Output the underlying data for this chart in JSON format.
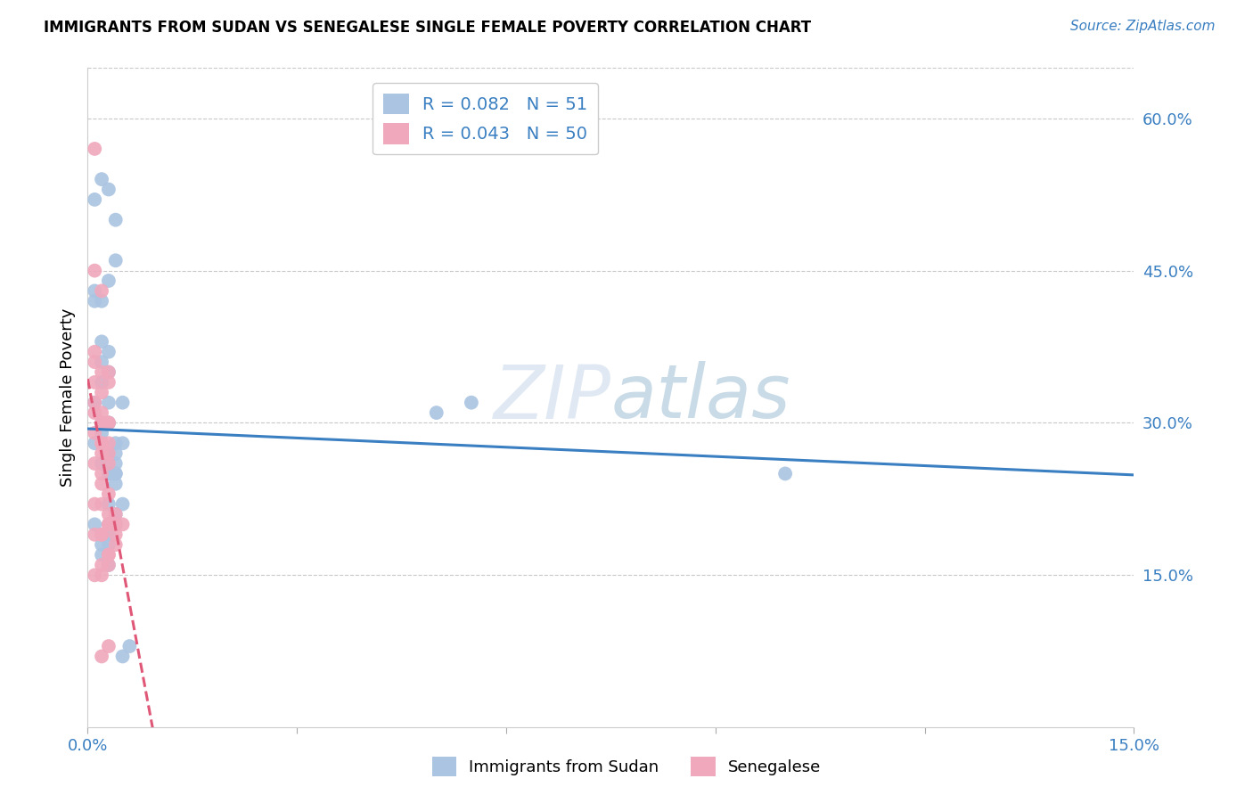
{
  "title": "IMMIGRANTS FROM SUDAN VS SENEGALESE SINGLE FEMALE POVERTY CORRELATION CHART",
  "source": "Source: ZipAtlas.com",
  "ylabel": "Single Female Poverty",
  "xlim": [
    0.0,
    0.15
  ],
  "ylim": [
    0.0,
    0.65
  ],
  "ytick_labels_right": [
    "60.0%",
    "45.0%",
    "30.0%",
    "15.0%"
  ],
  "ytick_vals_right": [
    0.6,
    0.45,
    0.3,
    0.15
  ],
  "grid_color": "#c8c8c8",
  "background_color": "#ffffff",
  "series": [
    {
      "label": "Immigrants from Sudan",
      "R": 0.082,
      "N": 51,
      "color": "#aac4e2",
      "line_color": "#3a7fc1",
      "line_style": "solid",
      "x": [
        0.001,
        0.002,
        0.001,
        0.002,
        0.003,
        0.004,
        0.003,
        0.002,
        0.001,
        0.002,
        0.003,
        0.004,
        0.003,
        0.002,
        0.001,
        0.003,
        0.004,
        0.003,
        0.002,
        0.001,
        0.002,
        0.003,
        0.004,
        0.003,
        0.005,
        0.004,
        0.003,
        0.005,
        0.004,
        0.002,
        0.003,
        0.004,
        0.003,
        0.005,
        0.004,
        0.003,
        0.002,
        0.004,
        0.003,
        0.05,
        0.055,
        0.1,
        0.001,
        0.002,
        0.003,
        0.004,
        0.002,
        0.003,
        0.005,
        0.006,
        0.004
      ],
      "y": [
        0.52,
        0.54,
        0.43,
        0.42,
        0.53,
        0.5,
        0.37,
        0.36,
        0.42,
        0.38,
        0.35,
        0.46,
        0.44,
        0.34,
        0.32,
        0.3,
        0.28,
        0.32,
        0.3,
        0.28,
        0.29,
        0.27,
        0.25,
        0.3,
        0.28,
        0.26,
        0.25,
        0.32,
        0.27,
        0.26,
        0.25,
        0.24,
        0.22,
        0.22,
        0.2,
        0.19,
        0.18,
        0.21,
        0.2,
        0.31,
        0.32,
        0.25,
        0.2,
        0.19,
        0.18,
        0.2,
        0.17,
        0.16,
        0.07,
        0.08,
        0.25
      ]
    },
    {
      "label": "Senegalese",
      "R": 0.043,
      "N": 50,
      "color": "#f0a8bc",
      "line_color": "#e05878",
      "line_style": "dashed",
      "x": [
        0.001,
        0.001,
        0.001,
        0.002,
        0.002,
        0.002,
        0.003,
        0.003,
        0.001,
        0.002,
        0.001,
        0.002,
        0.003,
        0.002,
        0.001,
        0.003,
        0.002,
        0.001,
        0.002,
        0.003,
        0.001,
        0.002,
        0.003,
        0.002,
        0.001,
        0.002,
        0.003,
        0.002,
        0.003,
        0.001,
        0.002,
        0.003,
        0.003,
        0.002,
        0.001,
        0.004,
        0.003,
        0.002,
        0.004,
        0.003,
        0.002,
        0.001,
        0.005,
        0.004,
        0.003,
        0.002,
        0.003,
        0.002,
        0.004,
        0.003
      ],
      "y": [
        0.37,
        0.57,
        0.34,
        0.35,
        0.33,
        0.31,
        0.35,
        0.3,
        0.32,
        0.3,
        0.45,
        0.43,
        0.3,
        0.28,
        0.36,
        0.34,
        0.3,
        0.29,
        0.28,
        0.27,
        0.31,
        0.3,
        0.28,
        0.27,
        0.26,
        0.25,
        0.26,
        0.24,
        0.23,
        0.22,
        0.22,
        0.21,
        0.2,
        0.19,
        0.19,
        0.21,
        0.2,
        0.19,
        0.18,
        0.17,
        0.16,
        0.15,
        0.2,
        0.19,
        0.08,
        0.07,
        0.16,
        0.15,
        0.2,
        0.17
      ]
    }
  ]
}
